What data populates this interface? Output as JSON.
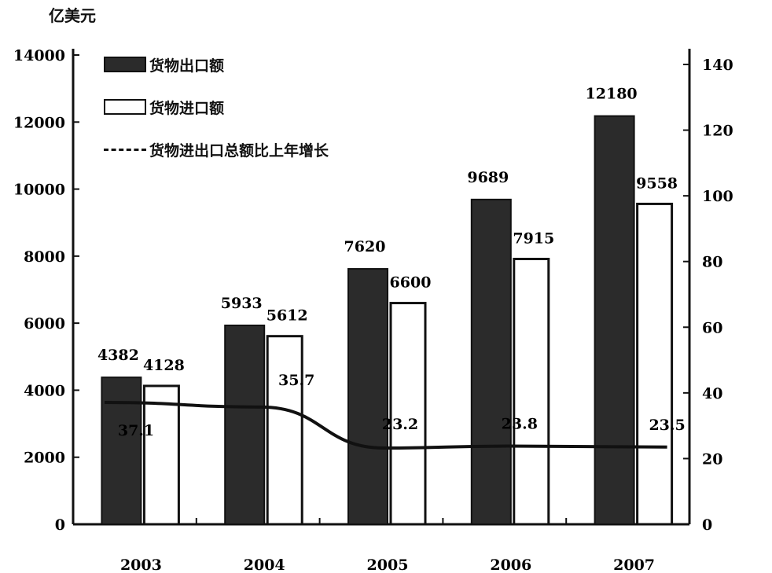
{
  "unit_label": "亿美元",
  "legend": {
    "exports": "货物出口额",
    "imports": "货物进口额",
    "growth": "货物进出口总额比上年增长"
  },
  "chart_data": {
    "type": "bar",
    "categories": [
      "2003",
      "2004",
      "2005",
      "2006",
      "2007"
    ],
    "series": [
      {
        "name": "货物出口额",
        "kind": "bar",
        "axis": "left",
        "color": "#2b2b2b",
        "values": [
          4382,
          5933,
          7620,
          9689,
          12180
        ],
        "labels": [
          "4382",
          "5933",
          "7620",
          "9689",
          "12180"
        ]
      },
      {
        "name": "货物进口额",
        "kind": "bar",
        "axis": "left",
        "color": "#ffffff",
        "values": [
          4128,
          5612,
          6600,
          7915,
          9558
        ],
        "labels": [
          "4128",
          "5612",
          "6600",
          "7915",
          "9558"
        ]
      },
      {
        "name": "货物进出口总额比上年增长",
        "kind": "line",
        "axis": "right",
        "color": "#111111",
        "values": [
          37.1,
          35.7,
          23.2,
          23.8,
          23.5
        ],
        "labels": [
          "37.1",
          "35.7",
          "23.2",
          "23.8",
          "23.5"
        ]
      }
    ],
    "y_left": {
      "min": 0,
      "max": 14000,
      "ticks": [
        "0",
        "2000",
        "4000",
        "6000",
        "8000",
        "10000",
        "12000",
        "14000"
      ]
    },
    "y_right": {
      "min": 0,
      "max": 140,
      "ticks": [
        "0",
        "20",
        "40",
        "60",
        "80",
        "100",
        "120",
        "140"
      ]
    },
    "grid": false,
    "legend_position": "top-left"
  }
}
